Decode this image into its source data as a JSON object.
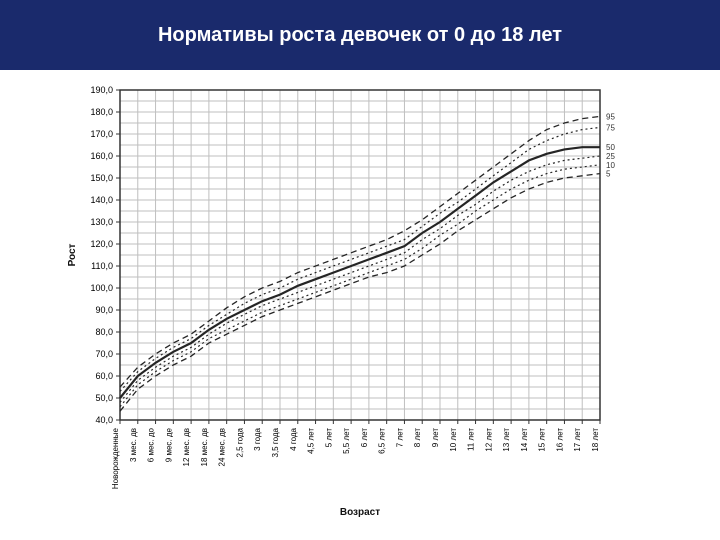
{
  "header": {
    "title": "Нормативы роста девочек от 0 до 18 лет",
    "bg_color": "#1a2a6c",
    "text_color": "#ffffff",
    "title_fontsize": 20
  },
  "chart": {
    "type": "line",
    "background_color": "#ffffff",
    "grid_color": "#bfbfbf",
    "plot_border_color": "#333333",
    "y_axis": {
      "label": "Рост",
      "min": 40,
      "max": 190,
      "tick_step": 10,
      "label_fontsize": 10,
      "tick_fontsize": 9
    },
    "x_axis": {
      "label": "Возраст",
      "categories": [
        "Новорожденные",
        "3 мес. дв",
        "6 мес. до",
        "9 мес. де",
        "12 мес. дв",
        "18 мес. дв",
        "24 мес. дв",
        "2,5 года",
        "3 года",
        "3,5 года",
        "4 года",
        "4,5 лет",
        "5 лет",
        "5,5 лет",
        "6 лет",
        "6,5 лет",
        "7 лет",
        "8 лет",
        "9 лет",
        "10 лет",
        "11 лет",
        "12 лет",
        "13 лет",
        "14 лет",
        "15 лет",
        "16 лет",
        "17 лет",
        "18 лет"
      ],
      "tick_fontsize": 8,
      "label_fontsize": 10
    },
    "percentile_labels": [
      "95",
      "75",
      "50",
      "25",
      "10",
      "5"
    ],
    "series": [
      {
        "name": "p95",
        "dash": "6,4",
        "width": 1.3,
        "color": "#252525",
        "values": [
          55,
          64,
          70,
          75,
          79,
          85,
          91,
          96,
          100,
          103,
          107,
          110,
          113,
          116,
          119,
          122,
          126,
          131,
          137,
          143,
          149,
          155,
          161,
          167,
          172,
          175,
          177,
          178
        ]
      },
      {
        "name": "p75",
        "dash": "2,3",
        "width": 1.2,
        "color": "#252525",
        "values": [
          53,
          62,
          68,
          73,
          77,
          83,
          88,
          93,
          97,
          100,
          104,
          107,
          110,
          113,
          116,
          119,
          122,
          128,
          134,
          139,
          145,
          151,
          157,
          163,
          167,
          170,
          172,
          173
        ]
      },
      {
        "name": "p50",
        "dash": "none",
        "width": 2.2,
        "color": "#111111",
        "values": [
          50,
          60,
          66,
          71,
          75,
          81,
          86,
          90,
          94,
          97,
          101,
          104,
          107,
          110,
          113,
          116,
          119,
          125,
          130,
          136,
          142,
          148,
          153,
          158,
          161,
          163,
          164,
          164
        ]
      },
      {
        "name": "p25",
        "dash": "2,3",
        "width": 1.2,
        "color": "#252525",
        "values": [
          48,
          58,
          64,
          69,
          73,
          79,
          84,
          88,
          92,
          95,
          98,
          101,
          104,
          107,
          110,
          113,
          116,
          122,
          127,
          133,
          138,
          144,
          149,
          153,
          156,
          158,
          159,
          160
        ]
      },
      {
        "name": "p10",
        "dash": "2,3",
        "width": 1.2,
        "color": "#252525",
        "values": [
          46,
          56,
          62,
          67,
          71,
          77,
          81,
          85,
          89,
          92,
          95,
          98,
          101,
          104,
          107,
          110,
          113,
          118,
          124,
          129,
          135,
          140,
          145,
          149,
          152,
          154,
          155,
          156
        ]
      },
      {
        "name": "p5",
        "dash": "6,4",
        "width": 1.3,
        "color": "#252525",
        "values": [
          44,
          54,
          60,
          65,
          69,
          75,
          79,
          83,
          87,
          90,
          93,
          96,
          99,
          102,
          105,
          107,
          110,
          115,
          120,
          126,
          131,
          136,
          141,
          145,
          148,
          150,
          151,
          152
        ]
      }
    ]
  }
}
